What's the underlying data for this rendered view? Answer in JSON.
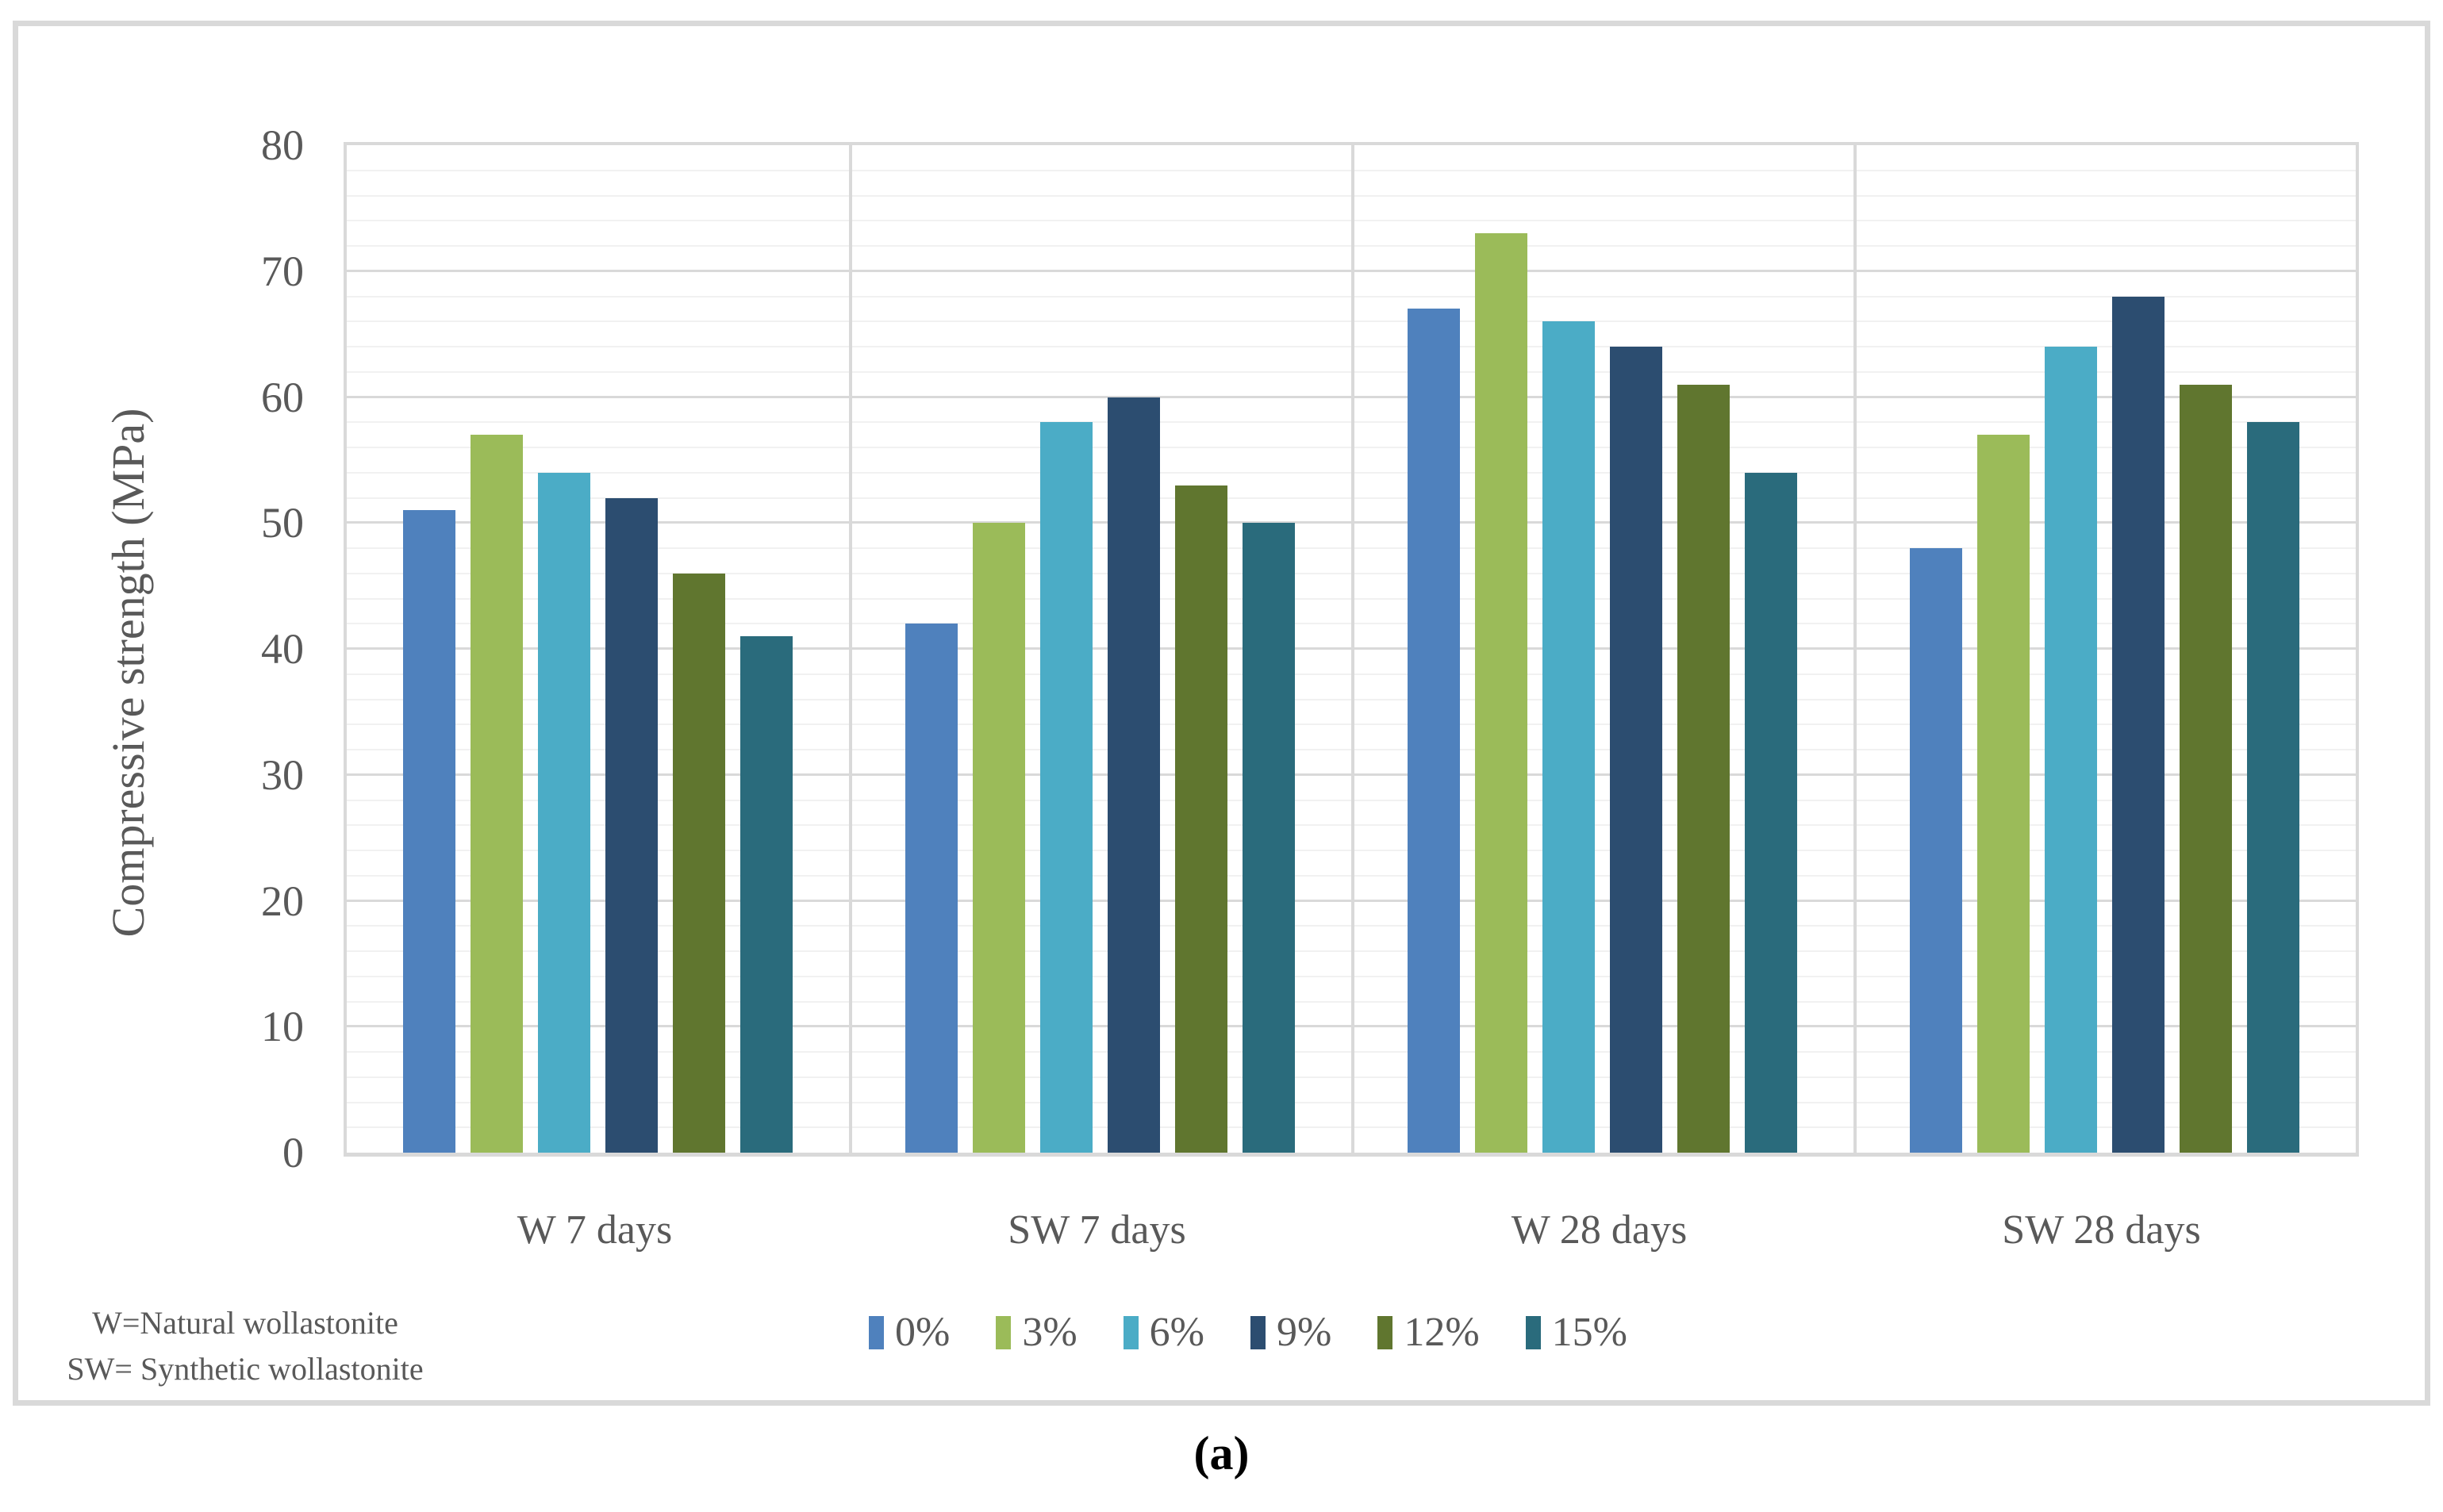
{
  "figure": {
    "caption": "(a)",
    "note_lines": [
      "W=Natural wollastonite",
      "SW= Synthetic wollastonite"
    ]
  },
  "chart_data": {
    "type": "bar",
    "title": "",
    "xlabel": "",
    "ylabel": "Compressive strength (MPa)",
    "ylim": [
      0,
      80
    ],
    "y_major_step": 10,
    "y_minor_step": 2,
    "y_ticks": [
      0,
      10,
      20,
      30,
      40,
      50,
      60,
      70,
      80
    ],
    "grid": true,
    "legend_position": "bottom",
    "categories": [
      "W 7 days",
      "SW 7 days",
      "W 28 days",
      "SW 28 days"
    ],
    "series": [
      {
        "name": "0%",
        "color": "#4F81BD",
        "values": [
          51,
          42,
          67,
          48
        ]
      },
      {
        "name": "3%",
        "color": "#9BBB59",
        "values": [
          57,
          50,
          73,
          57
        ]
      },
      {
        "name": "6%",
        "color": "#4BACC6",
        "values": [
          54,
          58,
          66,
          64
        ]
      },
      {
        "name": "9%",
        "color": "#2C4D70",
        "values": [
          52,
          60,
          64,
          68
        ]
      },
      {
        "name": "12%",
        "color": "#60762F",
        "values": [
          46,
          53,
          61,
          61
        ]
      },
      {
        "name": "15%",
        "color": "#2A6B7C",
        "values": [
          41,
          50,
          54,
          58
        ]
      }
    ]
  }
}
